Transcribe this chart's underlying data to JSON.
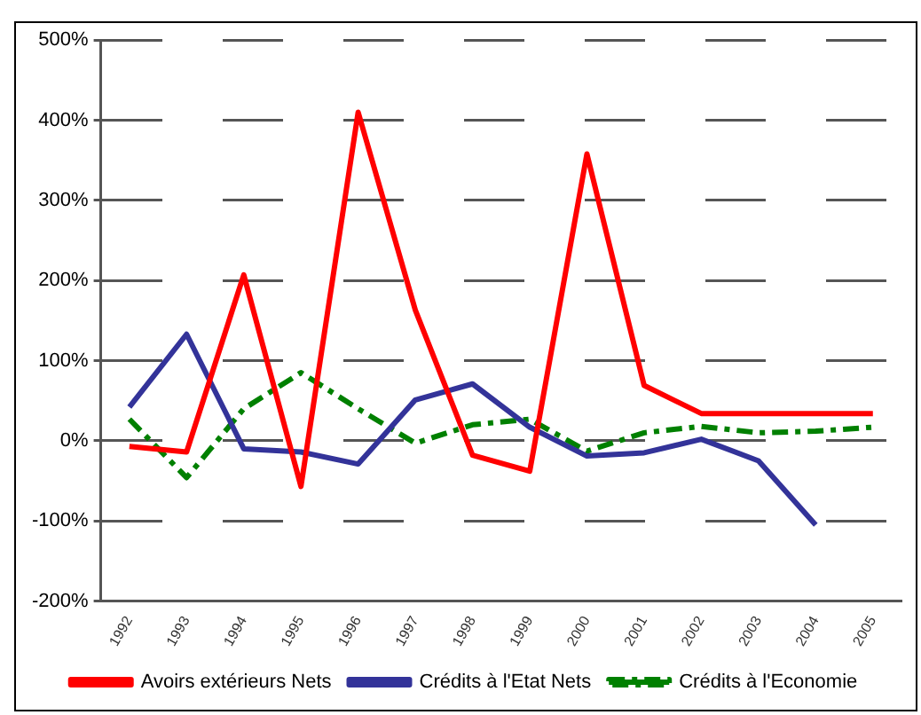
{
  "chart_data": {
    "type": "line",
    "categories": [
      "1992",
      "1993",
      "1994",
      "1995",
      "1996",
      "1997",
      "1998",
      "1999",
      "2000",
      "2001",
      "2002",
      "2003",
      "2004",
      "2005"
    ],
    "series": [
      {
        "name": "Avoirs extérieurs Nets",
        "color": "#ff0000",
        "line_style": "solid",
        "values": [
          -7,
          -14,
          207,
          -57,
          410,
          163,
          -18,
          -38,
          358,
          69,
          34,
          34,
          34,
          34
        ]
      },
      {
        "name": "Crédits à l'Etat Nets",
        "color": "#333399",
        "line_style": "solid",
        "values": [
          42,
          133,
          -10,
          -14,
          -29,
          51,
          71,
          17,
          -19,
          -15,
          2,
          -25,
          -105,
          null
        ]
      },
      {
        "name": "Crédits à l'Economie",
        "color": "#008000",
        "line_style": "dashed",
        "values": [
          27,
          -46,
          40,
          85,
          40,
          -3,
          20,
          27,
          -13,
          10,
          18,
          10,
          12,
          17
        ]
      }
    ],
    "ylim": [
      -200,
      500
    ],
    "yticks": [
      {
        "value": -200,
        "label": "-200%"
      },
      {
        "value": -100,
        "label": "-100%"
      },
      {
        "value": 0,
        "label": "0%"
      },
      {
        "value": 100,
        "label": "100%"
      },
      {
        "value": 200,
        "label": "200%"
      },
      {
        "value": 300,
        "label": "300%"
      },
      {
        "value": 400,
        "label": "400%"
      },
      {
        "value": 500,
        "label": "500%"
      }
    ],
    "grid": "y",
    "legend": "bottom",
    "marker": "none"
  }
}
